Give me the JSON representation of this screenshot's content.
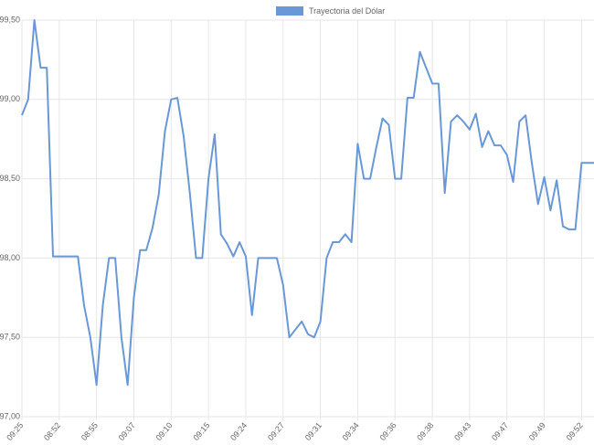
{
  "chart_data": {
    "type": "line",
    "legend": "top",
    "grid": true,
    "categories": [
      "09:25",
      null,
      null,
      null,
      null,
      null,
      "08:52",
      null,
      null,
      null,
      null,
      null,
      "08:55",
      null,
      null,
      null,
      null,
      null,
      "09:07",
      null,
      null,
      null,
      null,
      null,
      "09:10",
      null,
      null,
      null,
      null,
      null,
      "09:15",
      null,
      null,
      null,
      null,
      null,
      "09:24",
      null,
      null,
      null,
      null,
      null,
      "09:27",
      null,
      null,
      null,
      null,
      null,
      "09:31",
      null,
      null,
      null,
      null,
      null,
      "09:34",
      null,
      null,
      null,
      null,
      null,
      "09:36",
      null,
      null,
      null,
      null,
      null,
      "09:38",
      null,
      null,
      null,
      null,
      null,
      "09:43",
      null,
      null,
      null,
      null,
      null,
      "09:47",
      null,
      null,
      null,
      null,
      null,
      "09:49",
      null,
      null,
      null,
      null,
      null,
      "09:52",
      null,
      null
    ],
    "series": [
      {
        "name": "Trayectoria del Dólar",
        "color": "#6a97d6",
        "values": [
          98.9,
          99.0,
          99.5,
          99.2,
          99.2,
          98.01,
          98.01,
          98.01,
          98.01,
          98.01,
          97.7,
          97.5,
          97.2,
          97.7,
          98.0,
          98.0,
          97.5,
          97.2,
          97.75,
          98.05,
          98.05,
          98.19,
          98.4,
          98.8,
          99.0,
          99.01,
          98.77,
          98.41,
          98.0,
          98.0,
          98.5,
          98.78,
          98.15,
          98.09,
          98.01,
          98.1,
          98.01,
          97.64,
          98.0,
          98.0,
          98.0,
          98.0,
          97.83,
          97.5,
          97.55,
          97.6,
          97.52,
          97.5,
          97.6,
          98.0,
          98.1,
          98.1,
          98.15,
          98.1,
          98.72,
          98.5,
          98.5,
          98.7,
          98.88,
          98.84,
          98.5,
          98.5,
          99.01,
          99.01,
          99.3,
          99.2,
          99.1,
          99.1,
          98.41,
          98.86,
          98.9,
          98.86,
          98.81,
          98.91,
          98.7,
          98.8,
          98.71,
          98.71,
          98.65,
          98.48,
          98.86,
          98.9,
          98.6,
          98.34,
          98.51,
          98.3,
          98.49,
          98.2,
          98.18,
          98.18,
          98.6,
          98.6,
          98.6
        ]
      }
    ],
    "ylim": [
      97.0,
      99.5
    ],
    "yticks": [
      {
        "value": 97.0,
        "label": "97,00"
      },
      {
        "value": 97.5,
        "label": "97,50"
      },
      {
        "value": 98.0,
        "label": "98,00"
      },
      {
        "value": 98.5,
        "label": "98,50"
      },
      {
        "value": 99.0,
        "label": "99,00"
      },
      {
        "value": 99.5,
        "label": "99,50"
      }
    ]
  }
}
